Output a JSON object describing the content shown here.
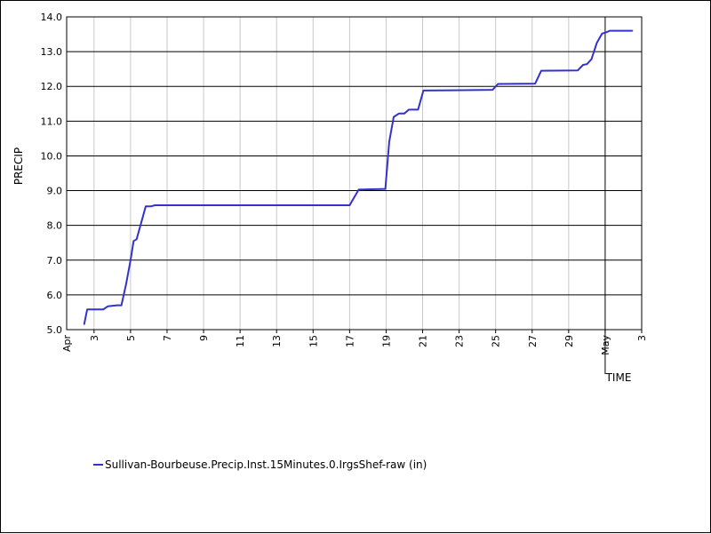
{
  "chart_data": {
    "type": "line",
    "title": "",
    "xlabel": "TIME",
    "ylabel": "PRECIP",
    "xlim": [
      "2009-04-01T12:00",
      "2009-05-03T00:00"
    ],
    "ylim": [
      5.0,
      14.0
    ],
    "y_ticks": [
      "5.0",
      "6.0",
      "7.0",
      "8.0",
      "9.0",
      "10.0",
      "11.0",
      "12.0",
      "13.0",
      "14.0"
    ],
    "x_ticks": [
      {
        "label": "3",
        "t": "2009-04-03T00:00"
      },
      {
        "label": "5",
        "t": "2009-04-05T00:00"
      },
      {
        "label": "7",
        "t": "2009-04-07T00:00"
      },
      {
        "label": "9",
        "t": "2009-04-09T00:00"
      },
      {
        "label": "11",
        "t": "2009-04-11T00:00"
      },
      {
        "label": "13",
        "t": "2009-04-13T00:00"
      },
      {
        "label": "15",
        "t": "2009-04-15T00:00"
      },
      {
        "label": "17",
        "t": "2009-04-17T00:00"
      },
      {
        "label": "19",
        "t": "2009-04-19T00:00"
      },
      {
        "label": "21",
        "t": "2009-04-21T00:00"
      },
      {
        "label": "23",
        "t": "2009-04-23T00:00"
      },
      {
        "label": "25",
        "t": "2009-04-25T00:00"
      },
      {
        "label": "27",
        "t": "2009-04-27T00:00"
      },
      {
        "label": "29",
        "t": "2009-04-29T00:00"
      },
      {
        "label": "May",
        "t": "2009-05-01T00:00",
        "month": true
      },
      {
        "label": "3",
        "t": "2009-05-03T00:00"
      }
    ],
    "x_month_labels": [
      {
        "label": "Apr",
        "t": "2009-04-01T12:00"
      }
    ],
    "grid": true,
    "legend_position": "bottom-left",
    "series": [
      {
        "name": "Sullivan-Bourbeuse.Precip.Inst.15Minutes.0.IrgsShef-raw (in)",
        "color": "#3333cc",
        "points": [
          [
            "2009-04-02T11:00",
            5.15
          ],
          [
            "2009-04-02T15:00",
            5.58
          ],
          [
            "2009-04-03T12:00",
            5.58
          ],
          [
            "2009-04-03T18:00",
            5.67
          ],
          [
            "2009-04-04T06:00",
            5.7
          ],
          [
            "2009-04-04T12:00",
            5.7
          ],
          [
            "2009-04-04T18:00",
            6.3
          ],
          [
            "2009-04-05T00:00",
            7.0
          ],
          [
            "2009-04-05T04:00",
            7.55
          ],
          [
            "2009-04-05T08:00",
            7.6
          ],
          [
            "2009-04-05T20:00",
            8.55
          ],
          [
            "2009-04-06T03:00",
            8.55
          ],
          [
            "2009-04-06T08:00",
            8.58
          ],
          [
            "2009-04-17T00:00",
            8.58
          ],
          [
            "2009-04-17T12:00",
            9.03
          ],
          [
            "2009-04-18T23:00",
            9.05
          ],
          [
            "2009-04-19T04:00",
            10.4
          ],
          [
            "2009-04-19T10:00",
            11.12
          ],
          [
            "2009-04-19T17:00",
            11.22
          ],
          [
            "2009-04-20T00:00",
            11.22
          ],
          [
            "2009-04-20T06:00",
            11.33
          ],
          [
            "2009-04-20T18:00",
            11.33
          ],
          [
            "2009-04-21T01:00",
            11.88
          ],
          [
            "2009-04-24T20:00",
            11.9
          ],
          [
            "2009-04-25T03:00",
            12.07
          ],
          [
            "2009-04-27T04:00",
            12.08
          ],
          [
            "2009-04-27T12:00",
            12.45
          ],
          [
            "2009-04-29T12:00",
            12.46
          ],
          [
            "2009-04-29T19:00",
            12.62
          ],
          [
            "2009-04-30T00:00",
            12.64
          ],
          [
            "2009-04-30T06:00",
            12.78
          ],
          [
            "2009-04-30T13:00",
            13.25
          ],
          [
            "2009-04-30T20:00",
            13.52
          ],
          [
            "2009-05-01T02:00",
            13.56
          ],
          [
            "2009-05-01T06:00",
            13.6
          ],
          [
            "2009-05-02T12:00",
            13.6
          ]
        ]
      }
    ]
  }
}
